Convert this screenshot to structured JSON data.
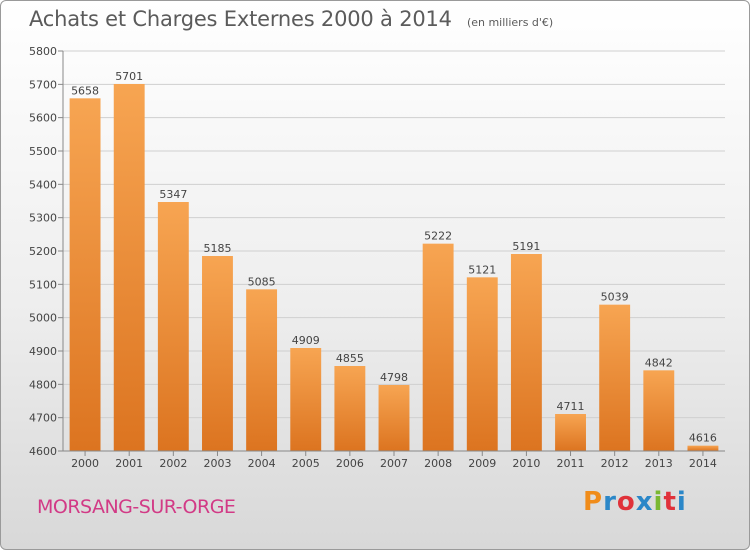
{
  "colors": {
    "bar_light": "#f7a552",
    "bar_dark": "#dc7420",
    "grid": "#cfcfcf",
    "text": "#444444",
    "commune": "#d23a86"
  },
  "footer": {
    "commune": "MORSANG-SUR-ORGE"
  },
  "logo": {
    "letters": [
      "P",
      "r",
      "o",
      "x",
      "i",
      "t",
      "i"
    ],
    "colors": [
      "#f08c1a",
      "#2b87c8",
      "#e0323a",
      "#2b87c8",
      "#7ab832",
      "#e0323a",
      "#2b87c8"
    ]
  },
  "chart_data": {
    "type": "bar",
    "title": "Achats et Charges Externes 2000 à 2014",
    "subtitle": "(en milliers d'€)",
    "categories": [
      "2000",
      "2001",
      "2002",
      "2003",
      "2004",
      "2005",
      "2006",
      "2007",
      "2008",
      "2009",
      "2010",
      "2011",
      "2012",
      "2013",
      "2014"
    ],
    "values": [
      5658,
      5701,
      5347,
      5185,
      5085,
      4909,
      4855,
      4798,
      5222,
      5121,
      5191,
      4711,
      5039,
      4842,
      4616
    ],
    "yticks": [
      4600,
      4700,
      4800,
      4900,
      5000,
      5100,
      5200,
      5300,
      5400,
      5500,
      5600,
      5700,
      5800
    ],
    "ylim": [
      4600,
      5800
    ],
    "grid": true,
    "xlabel": "",
    "ylabel": ""
  }
}
